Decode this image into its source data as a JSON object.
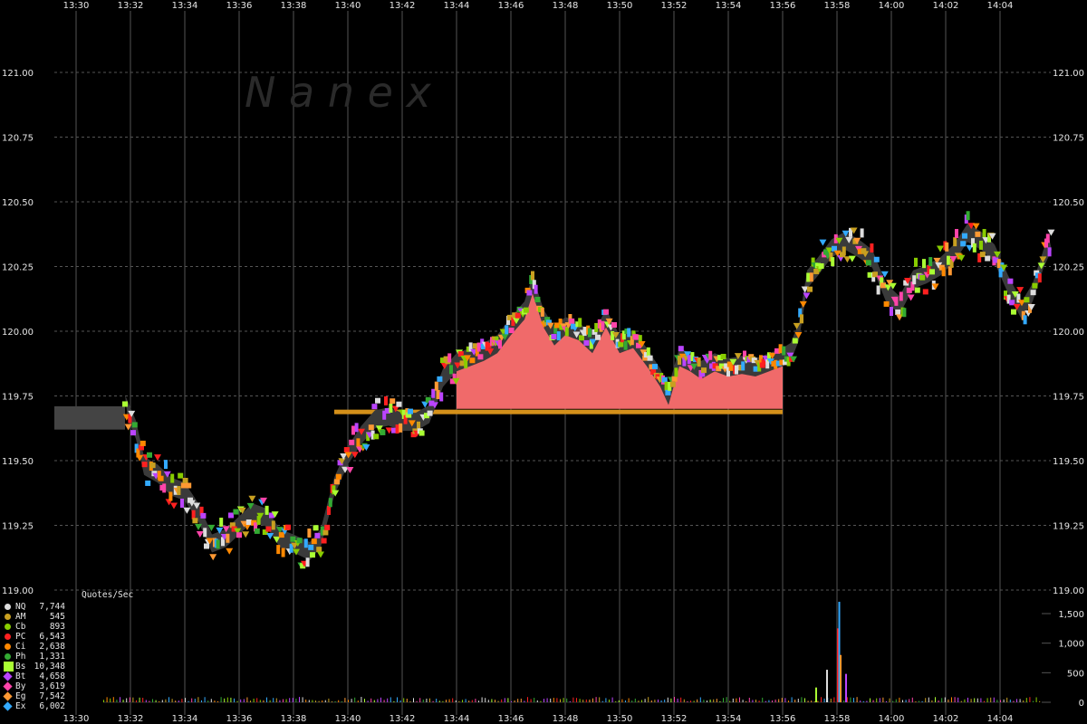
{
  "chart_data": {
    "type": "line",
    "watermark": "N  a  n  e  x",
    "xlim_minutes": [
      0,
      36
    ],
    "x_ticks": [
      "13:30",
      "13:32",
      "13:34",
      "13:36",
      "13:38",
      "13:40",
      "13:42",
      "13:44",
      "13:46",
      "13:48",
      "13:50",
      "13:52",
      "13:54",
      "13:56",
      "13:58",
      "14:00",
      "14:02",
      "14:04"
    ],
    "price": {
      "ylim": [
        119.0,
        121.1
      ],
      "y_ticks": [
        "119.00",
        "119.25",
        "119.50",
        "119.75",
        "120.00",
        "120.25",
        "120.50",
        "120.75",
        "121.00"
      ],
      "y_tick_values": [
        119.0,
        119.25,
        119.5,
        119.75,
        120.0,
        120.25,
        120.5,
        120.75,
        121.0
      ],
      "nbbo_path": [
        [
          1.8,
          119.72
        ],
        [
          2.2,
          119.62
        ],
        [
          2.5,
          119.48
        ],
        [
          3.0,
          119.45
        ],
        [
          3.5,
          119.4
        ],
        [
          4.0,
          119.38
        ],
        [
          4.5,
          119.3
        ],
        [
          5.0,
          119.18
        ],
        [
          5.5,
          119.2
        ],
        [
          6.0,
          119.25
        ],
        [
          6.5,
          119.3
        ],
        [
          7.0,
          119.28
        ],
        [
          7.5,
          119.2
        ],
        [
          8.0,
          119.18
        ],
        [
          8.6,
          119.15
        ],
        [
          9.0,
          119.2
        ],
        [
          9.5,
          119.4
        ],
        [
          10.0,
          119.52
        ],
        [
          10.5,
          119.6
        ],
        [
          11.0,
          119.66
        ],
        [
          11.5,
          119.67
        ],
        [
          12.0,
          119.65
        ],
        [
          12.5,
          119.65
        ],
        [
          13.0,
          119.68
        ],
        [
          13.5,
          119.82
        ],
        [
          14.0,
          119.88
        ],
        [
          14.5,
          119.9
        ],
        [
          15.0,
          119.92
        ],
        [
          15.5,
          119.95
        ],
        [
          16.0,
          120.02
        ],
        [
          16.5,
          120.08
        ],
        [
          16.8,
          120.18
        ],
        [
          17.2,
          120.05
        ],
        [
          17.6,
          119.98
        ],
        [
          18.0,
          120.02
        ],
        [
          18.5,
          120.0
        ],
        [
          19.0,
          119.95
        ],
        [
          19.5,
          120.05
        ],
        [
          20.0,
          119.95
        ],
        [
          20.5,
          119.97
        ],
        [
          21.0,
          119.9
        ],
        [
          21.5,
          119.82
        ],
        [
          21.8,
          119.75
        ],
        [
          22.2,
          119.9
        ],
        [
          22.6,
          119.88
        ],
        [
          23.0,
          119.85
        ],
        [
          23.5,
          119.88
        ],
        [
          24.0,
          119.86
        ],
        [
          24.5,
          119.87
        ],
        [
          25.0,
          119.86
        ],
        [
          25.5,
          119.88
        ],
        [
          26.0,
          119.9
        ],
        [
          26.3,
          119.92
        ],
        [
          26.6,
          120.0
        ],
        [
          26.9,
          120.2
        ],
        [
          27.3,
          120.25
        ],
        [
          27.8,
          120.32
        ],
        [
          28.3,
          120.35
        ],
        [
          28.8,
          120.32
        ],
        [
          29.3,
          120.28
        ],
        [
          29.8,
          120.15
        ],
        [
          30.3,
          120.1
        ],
        [
          30.8,
          120.2
        ],
        [
          31.3,
          120.22
        ],
        [
          31.8,
          120.25
        ],
        [
          32.3,
          120.3
        ],
        [
          32.8,
          120.38
        ],
        [
          33.3,
          120.35
        ],
        [
          33.8,
          120.3
        ],
        [
          34.3,
          120.18
        ],
        [
          34.8,
          120.08
        ],
        [
          35.2,
          120.15
        ],
        [
          35.6,
          120.28
        ],
        [
          35.9,
          120.35
        ]
      ],
      "gap_band": {
        "x_from": 14.0,
        "x_to": 26.0,
        "floor": 119.7,
        "bid_line": 119.69
      },
      "halt_block": {
        "x_from": 0.0,
        "x_to": 1.8,
        "low": 119.62,
        "high": 119.71
      }
    },
    "quote_rate": {
      "ylabel": "Quotes/Sec",
      "ylim": [
        0,
        1800
      ],
      "y_ticks": [
        "0",
        "500",
        "1,000",
        "1,500"
      ],
      "y_tick_values": [
        0,
        500,
        1000,
        1500
      ],
      "spikes": [
        [
          28.0,
          1250
        ],
        [
          28.05,
          1700
        ],
        [
          28.1,
          800
        ],
        [
          27.6,
          550
        ],
        [
          28.3,
          480
        ],
        [
          27.2,
          250
        ]
      ]
    },
    "legend": [
      {
        "code": "NQ",
        "count": "7,744",
        "color": "#dddddd",
        "shape": "circle"
      },
      {
        "code": "AM",
        "count": "545",
        "color": "#c8a020",
        "shape": "circle"
      },
      {
        "code": "Cb",
        "count": "893",
        "color": "#88cc00",
        "shape": "circle"
      },
      {
        "code": "PC",
        "count": "6,543",
        "color": "#ff2020",
        "shape": "circle"
      },
      {
        "code": "Ci",
        "count": "2,638",
        "color": "#ff8800",
        "shape": "circle"
      },
      {
        "code": "Ph",
        "count": "1,331",
        "color": "#33aa33",
        "shape": "circle"
      },
      {
        "code": "Bs",
        "count": "10,348",
        "color": "#aaff33",
        "shape": "square"
      },
      {
        "code": "Bt",
        "count": "4,658",
        "color": "#bb44ff",
        "shape": "diamond"
      },
      {
        "code": "By",
        "count": "3,619",
        "color": "#ff44aa",
        "shape": "diamond"
      },
      {
        "code": "Eg",
        "count": "7,542",
        "color": "#ff9933",
        "shape": "diamond"
      },
      {
        "code": "Ex",
        "count": "6,002",
        "color": "#33aaff",
        "shape": "diamond"
      }
    ],
    "colors": {
      "grid": "#555555",
      "gap_fill": "#f06a6a",
      "bid_line": "#d4901a",
      "halt_block": "#444444",
      "spread": "#3a3a3a"
    }
  }
}
